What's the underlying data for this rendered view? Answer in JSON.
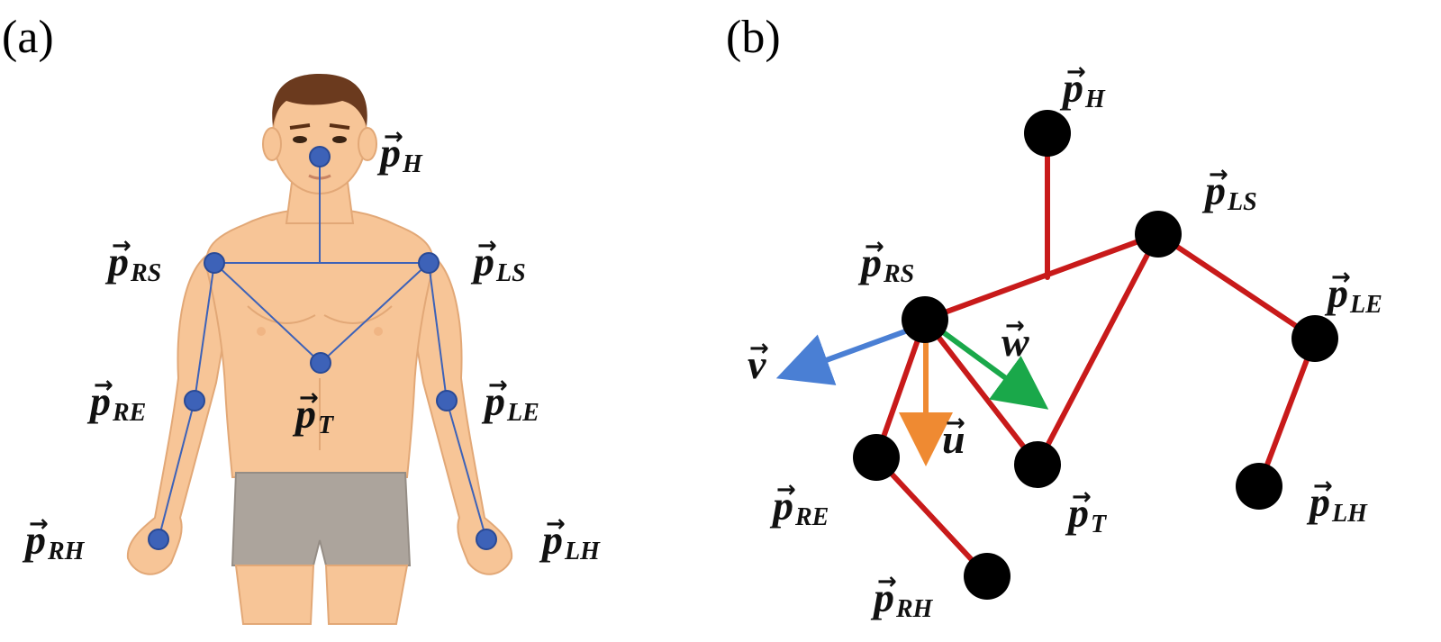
{
  "panels": {
    "a": {
      "label": "(a)",
      "joints": [
        {
          "id": "H",
          "main": "p",
          "sub": "H"
        },
        {
          "id": "RS",
          "main": "p",
          "sub": "RS"
        },
        {
          "id": "LS",
          "main": "p",
          "sub": "LS"
        },
        {
          "id": "T",
          "main": "p",
          "sub": "T"
        },
        {
          "id": "RE",
          "main": "p",
          "sub": "RE"
        },
        {
          "id": "LE",
          "main": "p",
          "sub": "LE"
        },
        {
          "id": "RH",
          "main": "p",
          "sub": "RH"
        },
        {
          "id": "LH",
          "main": "p",
          "sub": "LH"
        }
      ],
      "joint_color": "#3d62b8",
      "line_color": "#3d62b8"
    },
    "b": {
      "label": "(b)",
      "joints": [
        {
          "id": "H",
          "main": "p",
          "sub": "H"
        },
        {
          "id": "LS",
          "main": "p",
          "sub": "LS"
        },
        {
          "id": "RS",
          "main": "p",
          "sub": "RS"
        },
        {
          "id": "LE",
          "main": "p",
          "sub": "LE"
        },
        {
          "id": "T",
          "main": "p",
          "sub": "T"
        },
        {
          "id": "RE",
          "main": "p",
          "sub": "RE"
        },
        {
          "id": "LH",
          "main": "p",
          "sub": "LH"
        },
        {
          "id": "RH",
          "main": "p",
          "sub": "RH"
        }
      ],
      "vectors": [
        {
          "id": "v",
          "main": "v",
          "color": "#4a7fd4"
        },
        {
          "id": "w",
          "main": "w",
          "color": "#1aa84a"
        },
        {
          "id": "u",
          "main": "u",
          "color": "#ef8a32"
        }
      ],
      "joint_color": "#000000",
      "bone_color": "#c81a1a"
    }
  }
}
